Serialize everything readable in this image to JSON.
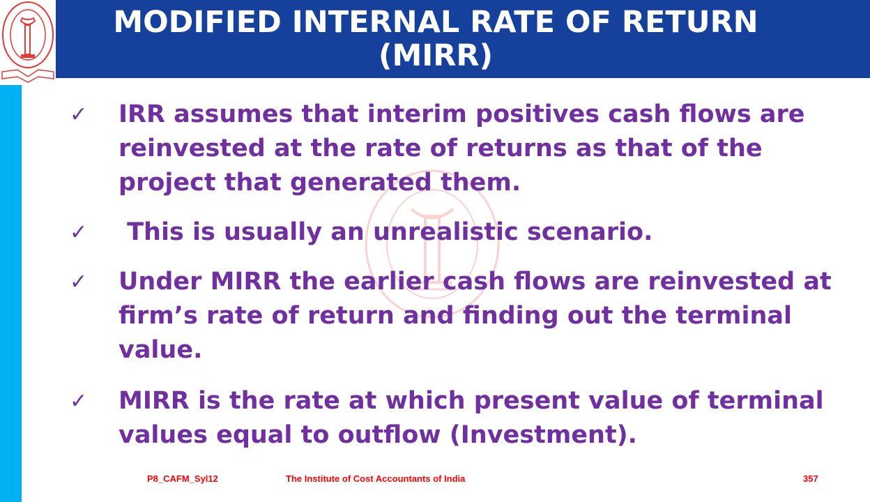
{
  "header": {
    "title_line1": "MODIFIED INTERNAL RATE OF RETURN",
    "title_line2": "(MIRR)",
    "color": "#15409b"
  },
  "logo": {
    "text": "THE INSTITUTE OF COST ACCOUNTANTS OF INDIA"
  },
  "bullets": [
    {
      "icon": "checkmark-icon",
      "check": "✓",
      "text": "IRR assumes that interim positives cash flows are reinvested at the rate of returns as that of the project that generated them."
    },
    {
      "icon": "checkmark-icon",
      "check": "✓",
      "text": " This is usually an unrealistic scenario."
    },
    {
      "icon": "checkmark-icon",
      "check": "✓",
      "text": "Under MIRR the earlier cash flows are reinvested at firm’s rate of return and finding out the terminal value."
    },
    {
      "icon": "checkmark-icon",
      "check": "✓",
      "text": "MIRR is the rate at which present value of terminal values equal to outflow (Investment)."
    }
  ],
  "footer": {
    "code": "P8_CAFM_Syl12",
    "institute": "The Institute of Cost Accountants of India",
    "page": "357"
  },
  "colors": {
    "text": "#7030a0",
    "accent": "#00b0f0",
    "footer": "#ff0000"
  }
}
